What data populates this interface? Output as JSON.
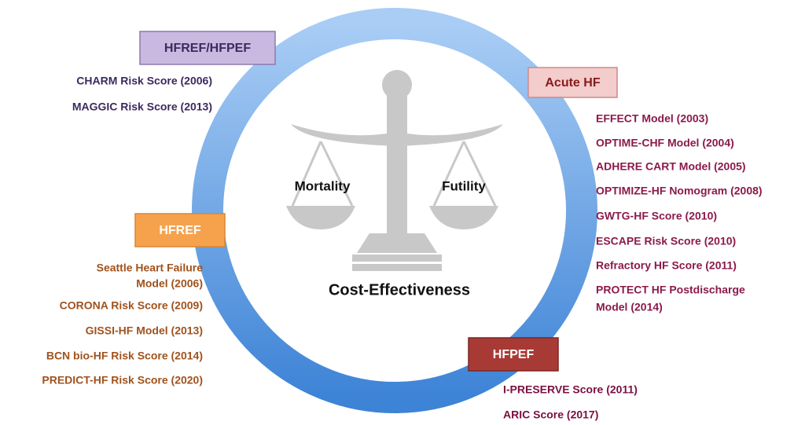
{
  "center": {
    "left_label": "Mortality",
    "right_label": "Futility",
    "bottom_label": "Cost-Effectiveness"
  },
  "groups": [
    {
      "title": "HFREF/HFPEF",
      "items": [
        [
          "CHARM Risk Score (2006)"
        ],
        [
          "MAGGIC Risk Score  (2013)"
        ]
      ]
    },
    {
      "title": "Acute HF",
      "items": [
        [
          "EFFECT Model (2003)"
        ],
        [
          "OPTIME-CHF Model (2004)"
        ],
        [
          "ADHERE CART Model (2005)"
        ],
        [
          "OPTIMIZE-HF Nomogram (2008)"
        ],
        [
          "GWTG-HF Score (2010)"
        ],
        [
          "ESCAPE Risk Score (2010)"
        ],
        [
          "Refractory HF Score (2011)"
        ],
        [
          "PROTECT HF Postdischarge",
          "Model (2014)"
        ]
      ]
    },
    {
      "title": "HFREF",
      "items": [
        [
          "Seattle Heart Failure",
          "Model (2006)"
        ],
        [
          "CORONA Risk Score (2009)"
        ],
        [
          "GISSI-HF Model (2013)"
        ],
        [
          "BCN bio-HF Risk Score (2014)"
        ],
        [
          "PREDICT-HF Risk Score (2020)"
        ]
      ]
    },
    {
      "title": "HFPEF",
      "items": [
        [
          "I-PRESERVE Score (2011)"
        ],
        [
          "ARIC Score (2017)"
        ]
      ]
    }
  ]
}
